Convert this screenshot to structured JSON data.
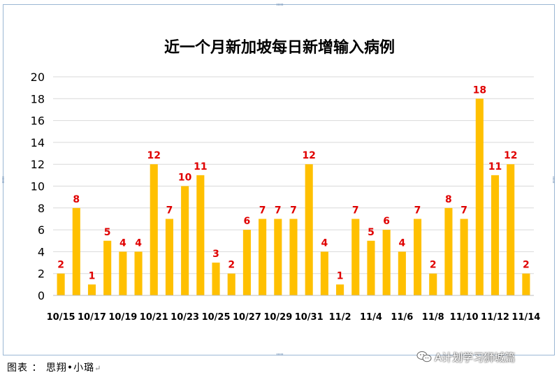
{
  "chart_data": {
    "type": "bar",
    "title": "近一个月新加坡每日新增输入病例",
    "xlabel": "",
    "ylabel": "",
    "ylim": [
      0,
      20
    ],
    "yticks": [
      0,
      2,
      4,
      6,
      8,
      10,
      12,
      14,
      16,
      18,
      20
    ],
    "grid": true,
    "bar_color": "#FFC000",
    "label_color": "#E00000",
    "categories": [
      "10/15",
      "10/16",
      "10/17",
      "10/18",
      "10/19",
      "10/20",
      "10/21",
      "10/22",
      "10/23",
      "10/24",
      "10/25",
      "10/26",
      "10/27",
      "10/28",
      "10/29",
      "10/30",
      "10/31",
      "11/1",
      "11/2",
      "11/3",
      "11/4",
      "11/5",
      "11/6",
      "11/7",
      "11/8",
      "11/9",
      "11/10",
      "11/11",
      "11/12",
      "11/13",
      "11/14"
    ],
    "tick_labels": [
      "10/15",
      "",
      "10/17",
      "",
      "10/19",
      "",
      "10/21",
      "",
      "10/23",
      "",
      "10/25",
      "",
      "10/27",
      "",
      "10/29",
      "",
      "10/31",
      "",
      "11/2",
      "",
      "11/4",
      "",
      "11/6",
      "",
      "11/8",
      "",
      "11/10",
      "",
      "11/12",
      "",
      "11/14"
    ],
    "values": [
      2,
      8,
      1,
      5,
      4,
      4,
      12,
      7,
      10,
      11,
      3,
      2,
      6,
      7,
      7,
      7,
      12,
      4,
      1,
      7,
      5,
      6,
      4,
      7,
      2,
      8,
      7,
      18,
      11,
      12,
      2
    ]
  },
  "caption": {
    "text": "图表 ： 思翔•小璐",
    "mark": "↵"
  },
  "watermark": {
    "text": "A计划学习狮城篇"
  }
}
